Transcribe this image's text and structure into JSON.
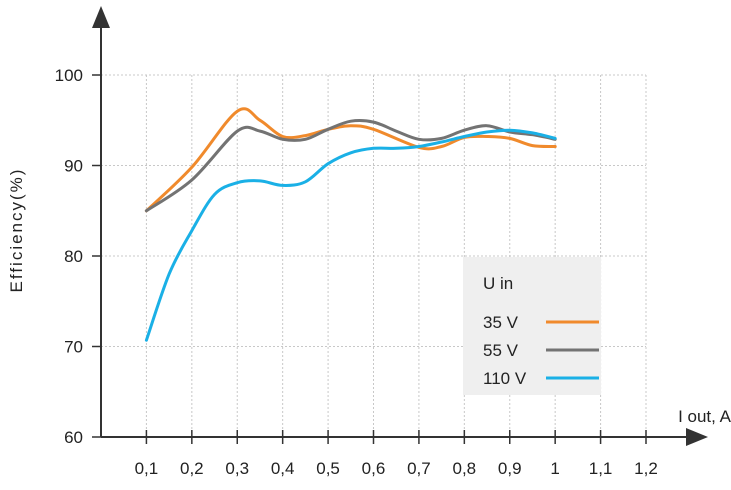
{
  "chart_data": {
    "type": "line",
    "xlabel": "I out, A",
    "ylabel": "Efficiency(%)",
    "xlim": [
      0,
      1.2
    ],
    "ylim": [
      60,
      100
    ],
    "x_ticks": [
      0.1,
      0.2,
      0.3,
      0.4,
      0.5,
      0.6,
      0.7,
      0.8,
      0.9,
      1.0,
      1.1,
      1.2
    ],
    "x_tick_labels": [
      "0,1",
      "0,2",
      "0,3",
      "0,4",
      "0,5",
      "0,6",
      "0,7",
      "0,8",
      "0,9",
      "1",
      "1,1",
      "1,2"
    ],
    "y_ticks": [
      60,
      70,
      80,
      90,
      100
    ],
    "y_tick_labels": [
      "60",
      "70",
      "80",
      "90",
      "100"
    ],
    "grid": true,
    "legend": {
      "title": "U in",
      "position": "bottom-right"
    },
    "series": [
      {
        "name": "35 V",
        "color": "#f08a2c",
        "x": [
          0.1,
          0.2,
          0.3,
          0.35,
          0.4,
          0.45,
          0.5,
          0.55,
          0.6,
          0.7,
          0.75,
          0.8,
          0.85,
          0.9,
          0.95,
          1.0
        ],
        "y": [
          85,
          89.8,
          96,
          95,
          93.2,
          93.3,
          94,
          94.4,
          94,
          92,
          92.1,
          93.1,
          93.2,
          93,
          92.2,
          92.1
        ]
      },
      {
        "name": "55 V",
        "color": "#737373",
        "x": [
          0.1,
          0.2,
          0.3,
          0.35,
          0.4,
          0.45,
          0.5,
          0.55,
          0.6,
          0.65,
          0.7,
          0.75,
          0.8,
          0.85,
          0.9,
          0.95,
          1.0
        ],
        "y": [
          85,
          88.4,
          93.8,
          93.8,
          92.9,
          92.9,
          94,
          94.9,
          94.8,
          93.8,
          92.9,
          93.0,
          93.9,
          94.4,
          93.7,
          93.4,
          92.9
        ]
      },
      {
        "name": "110 V",
        "color": "#1ab0e6",
        "x": [
          0.1,
          0.15,
          0.2,
          0.25,
          0.3,
          0.35,
          0.4,
          0.45,
          0.5,
          0.55,
          0.6,
          0.65,
          0.7,
          0.75,
          0.8,
          0.85,
          0.9,
          0.95,
          1.0
        ],
        "y": [
          70.7,
          78,
          82.8,
          86.8,
          88.1,
          88.3,
          87.8,
          88.2,
          90.2,
          91.4,
          91.9,
          91.9,
          92.1,
          92.6,
          93.2,
          93.7,
          93.9,
          93.6,
          93
        ]
      }
    ]
  }
}
